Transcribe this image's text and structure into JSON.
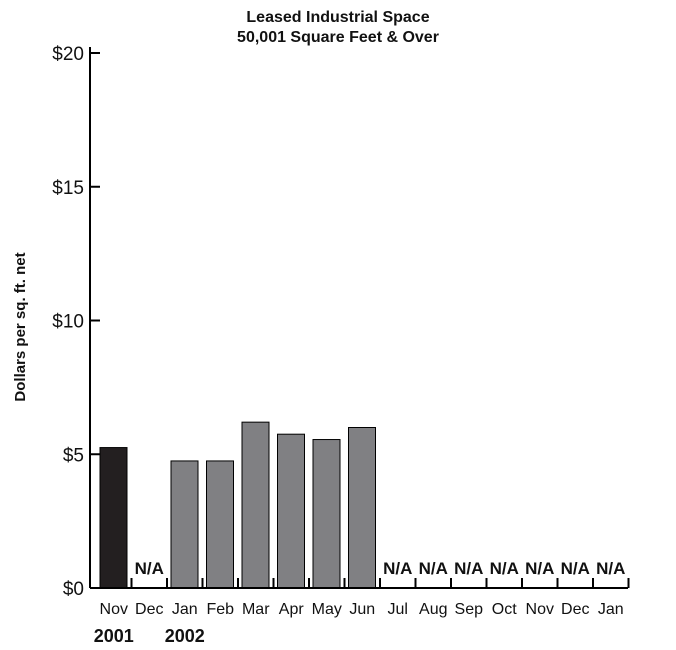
{
  "chart_data": {
    "type": "bar",
    "title": "Leased Industrial Space",
    "subtitle": "50,001  Square Feet & Over",
    "ylabel": "Dollars per sq. ft. net",
    "xlabel": "",
    "ylim": [
      0,
      20
    ],
    "yticks": [
      "$0",
      "$5",
      "$10",
      "$15",
      "$20"
    ],
    "ytick_values": [
      0,
      5,
      10,
      15,
      20
    ],
    "categories": [
      "Nov",
      "Dec",
      "Jan",
      "Feb",
      "Mar",
      "Apr",
      "May",
      "Jun",
      "Jul",
      "Aug",
      "Sep",
      "Oct",
      "Nov",
      "Dec",
      "Jan"
    ],
    "values": [
      5.25,
      null,
      4.75,
      4.75,
      6.2,
      5.75,
      5.55,
      6.0,
      null,
      null,
      null,
      null,
      null,
      null,
      null
    ],
    "missing_label": "N/A",
    "year_labels": [
      {
        "text": "2001",
        "category_index": 0
      },
      {
        "text": "2002",
        "category_index": 2
      }
    ],
    "grid": false,
    "legend": "none",
    "colors": {
      "highlight": "#231f20",
      "bar": "#808083",
      "bar_edge": "#000000",
      "axis": "#000000"
    }
  }
}
